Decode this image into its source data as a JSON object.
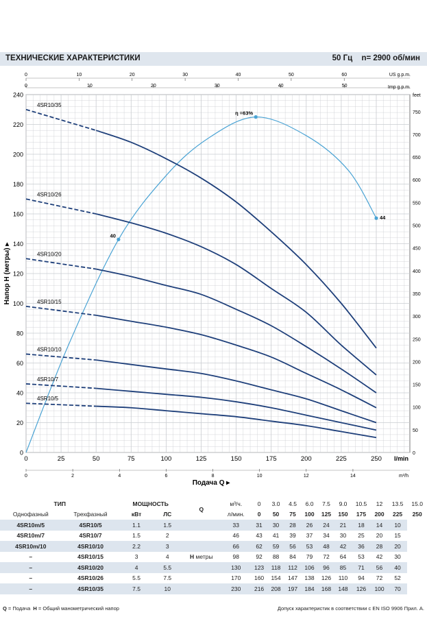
{
  "header": {
    "title": "ТЕХНИЧЕСКИЕ ХАРАКТЕРИСТИКИ",
    "freq": "50 Гц",
    "speed": "n= 2900 об/мин"
  },
  "chart_data": {
    "type": "line",
    "x_axis": {
      "label": "Подача Q",
      "unit": "l/min",
      "range": [
        0,
        250
      ],
      "ticks": [
        0,
        25,
        50,
        75,
        100,
        125,
        150,
        175,
        200,
        225,
        250
      ]
    },
    "x_axis_m3h": {
      "unit": "m³/h",
      "ticks": [
        0,
        2,
        4,
        6,
        8,
        10,
        12,
        14
      ]
    },
    "x_axis_us": {
      "unit": "US g.p.m.",
      "ticks": [
        0,
        10,
        20,
        30,
        40,
        50,
        60
      ]
    },
    "x_axis_imp": {
      "unit": "Imp g.p.m.",
      "ticks": [
        0,
        10,
        20,
        30,
        40,
        50
      ]
    },
    "y_axis": {
      "label": "Напор H (метры)",
      "range": [
        0,
        240
      ],
      "ticks": [
        0,
        20,
        40,
        60,
        80,
        100,
        120,
        140,
        160,
        180,
        200,
        220,
        240
      ]
    },
    "y_axis_right": {
      "unit": "feet",
      "ticks": [
        0,
        50,
        100,
        150,
        200,
        250,
        300,
        350,
        400,
        450,
        500,
        550,
        600,
        650,
        700,
        750
      ]
    },
    "grid": true,
    "series": [
      {
        "name": "4SR10/5",
        "x": [
          0,
          50,
          75,
          100,
          125,
          150,
          175,
          200,
          225,
          250
        ],
        "y": [
          33,
          31,
          30,
          28,
          26,
          24,
          21,
          18,
          14,
          10
        ]
      },
      {
        "name": "4SR10/7",
        "x": [
          0,
          50,
          75,
          100,
          125,
          150,
          175,
          200,
          225,
          250
        ],
        "y": [
          46,
          43,
          41,
          39,
          37,
          34,
          30,
          25,
          20,
          15
        ]
      },
      {
        "name": "4SR10/10",
        "x": [
          0,
          50,
          75,
          100,
          125,
          150,
          175,
          200,
          225,
          250
        ],
        "y": [
          66,
          62,
          59,
          56,
          53,
          48,
          42,
          36,
          28,
          20
        ]
      },
      {
        "name": "4SR10/15",
        "x": [
          0,
          50,
          75,
          100,
          125,
          150,
          175,
          200,
          225,
          250
        ],
        "y": [
          98,
          92,
          88,
          84,
          79,
          72,
          64,
          53,
          42,
          30
        ]
      },
      {
        "name": "4SR10/20",
        "x": [
          0,
          50,
          75,
          100,
          125,
          150,
          175,
          200,
          225,
          250
        ],
        "y": [
          130,
          123,
          118,
          112,
          106,
          96,
          85,
          71,
          56,
          40
        ]
      },
      {
        "name": "4SR10/26",
        "x": [
          0,
          50,
          75,
          100,
          125,
          150,
          175,
          200,
          225,
          250
        ],
        "y": [
          170,
          160,
          154,
          147,
          138,
          126,
          110,
          94,
          72,
          52
        ]
      },
      {
        "name": "4SR10/35",
        "x": [
          0,
          50,
          75,
          100,
          125,
          150,
          175,
          200,
          225,
          250
        ],
        "y": [
          230,
          216,
          208,
          197,
          184,
          168,
          148,
          126,
          100,
          70
        ]
      }
    ],
    "efficiency": {
      "x": [
        0,
        30,
        66,
        100,
        130,
        164,
        200,
        230,
        250
      ],
      "y_pct": [
        0,
        20,
        40,
        52,
        59,
        63,
        59.5,
        53,
        44
      ],
      "labels": [
        {
          "x": 66,
          "text": "40"
        },
        {
          "x": 164,
          "text": "η =63%"
        },
        {
          "x": 250,
          "text": "44"
        }
      ]
    }
  },
  "table": {
    "header": {
      "type": "ТИП",
      "power": "МОЩНОСТЬ",
      "single_phase": "Однофазный",
      "three_phase": "Трехфазный",
      "kw": "кВт",
      "hp": "ЛС",
      "q": "Q",
      "m3h": "м³/ч.",
      "lmin": "л/мин.",
      "h_unit": "H метры"
    },
    "q_m3h": [
      "0",
      "3.0",
      "4.5",
      "6.0",
      "7.5",
      "9.0",
      "10.5",
      "12",
      "13.5",
      "15.0"
    ],
    "q_lmin": [
      "0",
      "50",
      "75",
      "100",
      "125",
      "150",
      "175",
      "200",
      "225",
      "250"
    ],
    "rows": [
      {
        "single": "4SR10m/5",
        "three": "4SR10/5",
        "kw": "1.1",
        "hp": "1.5",
        "h": [
          "33",
          "31",
          "30",
          "28",
          "26",
          "24",
          "21",
          "18",
          "14",
          "10"
        ]
      },
      {
        "single": "4SR10m/7",
        "three": "4SR10/7",
        "kw": "1.5",
        "hp": "2",
        "h": [
          "46",
          "43",
          "41",
          "39",
          "37",
          "34",
          "30",
          "25",
          "20",
          "15"
        ]
      },
      {
        "single": "4SR10m/10",
        "three": "4SR10/10",
        "kw": "2.2",
        "hp": "3",
        "h": [
          "66",
          "62",
          "59",
          "56",
          "53",
          "48",
          "42",
          "36",
          "28",
          "20"
        ]
      },
      {
        "single": "–",
        "three": "4SR10/15",
        "kw": "3",
        "hp": "4",
        "h": [
          "98",
          "92",
          "88",
          "84",
          "79",
          "72",
          "64",
          "53",
          "42",
          "30"
        ]
      },
      {
        "single": "–",
        "three": "4SR10/20",
        "kw": "4",
        "hp": "5.5",
        "h": [
          "130",
          "123",
          "118",
          "112",
          "106",
          "96",
          "85",
          "71",
          "56",
          "40"
        ]
      },
      {
        "single": "–",
        "three": "4SR10/26",
        "kw": "5.5",
        "hp": "7.5",
        "h": [
          "170",
          "160",
          "154",
          "147",
          "138",
          "126",
          "110",
          "94",
          "72",
          "52"
        ]
      },
      {
        "single": "–",
        "three": "4SR10/35",
        "kw": "7.5",
        "hp": "10",
        "h": [
          "230",
          "216",
          "208",
          "197",
          "184",
          "168",
          "148",
          "126",
          "100",
          "70"
        ]
      }
    ]
  },
  "footer": {
    "q_key": "Q",
    "q_def": " = Подача",
    "h_key": "H",
    "h_def": " = Общий манометрический напор",
    "tolerance": "Допуск характеристик в соответствии с EN ISO 9906 Прил. A."
  },
  "colors": {
    "curve": "#1e3f7a",
    "efficiency": "#4aa3d4",
    "grid": "#c9ccd0",
    "header_bg": "#dfe6ee",
    "row_shade": "#dde5ee"
  }
}
